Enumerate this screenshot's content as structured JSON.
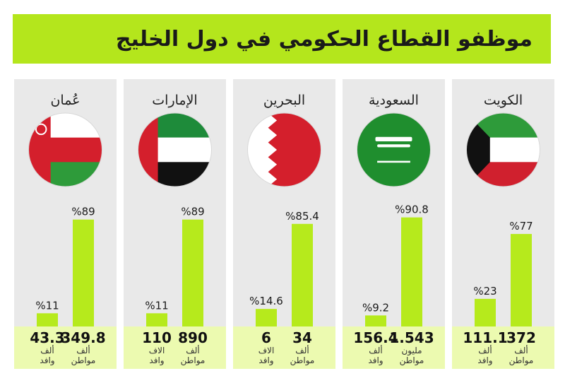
{
  "title": "موظفو القطاع الحكومي في دول الخليج",
  "colors": {
    "accent": "#b6ea1c",
    "title_bg": "#b4e61c",
    "panel": "#e9e9e9",
    "band": "#ecfab0"
  },
  "chart_data": {
    "type": "bar",
    "title": "موظفو القطاع الحكومي في دول الخليج",
    "series_order": [
      "citizens",
      "expats"
    ],
    "panels": [
      {
        "country": "الكويت",
        "flag": "kuwait-flag-icon",
        "citizens": {
          "pct": 77,
          "pct_label": "%77",
          "count": "372",
          "unit_line1": "ألف",
          "unit_line2": "مواطن"
        },
        "expats": {
          "pct": 23,
          "pct_label": "%23",
          "count": "111.1",
          "unit_line1": "ألف",
          "unit_line2": "وافد"
        }
      },
      {
        "country": "السعودية",
        "flag": "saudi-flag-icon",
        "citizens": {
          "pct": 90.8,
          "pct_label": "%90.8",
          "count": "1.543",
          "unit_line1": "مليون",
          "unit_line2": "مواطن"
        },
        "expats": {
          "pct": 9.2,
          "pct_label": "%9.2",
          "count": "156.4",
          "unit_line1": "ألف",
          "unit_line2": "وافد"
        }
      },
      {
        "country": "البحرين",
        "flag": "bahrain-flag-icon",
        "citizens": {
          "pct": 85.4,
          "pct_label": "%85.4",
          "count": "34",
          "unit_line1": "ألف",
          "unit_line2": "مواطن"
        },
        "expats": {
          "pct": 14.6,
          "pct_label": "%14.6",
          "count": "6",
          "unit_line1": "الاف",
          "unit_line2": "وافد"
        }
      },
      {
        "country": "الإمارات",
        "flag": "uae-flag-icon",
        "citizens": {
          "pct": 89,
          "pct_label": "%89",
          "count": "890",
          "unit_line1": "ألف",
          "unit_line2": "مواطن"
        },
        "expats": {
          "pct": 11,
          "pct_label": "%11",
          "count": "110",
          "unit_line1": "الاف",
          "unit_line2": "وافد"
        }
      },
      {
        "country": "عُمان",
        "flag": "oman-flag-icon",
        "citizens": {
          "pct": 89,
          "pct_label": "%89",
          "count": "349.8",
          "unit_line1": "ألف",
          "unit_line2": "مواطن"
        },
        "expats": {
          "pct": 11,
          "pct_label": "%11",
          "count": "43.3",
          "unit_line1": "ألف",
          "unit_line2": "وافد"
        }
      }
    ]
  }
}
